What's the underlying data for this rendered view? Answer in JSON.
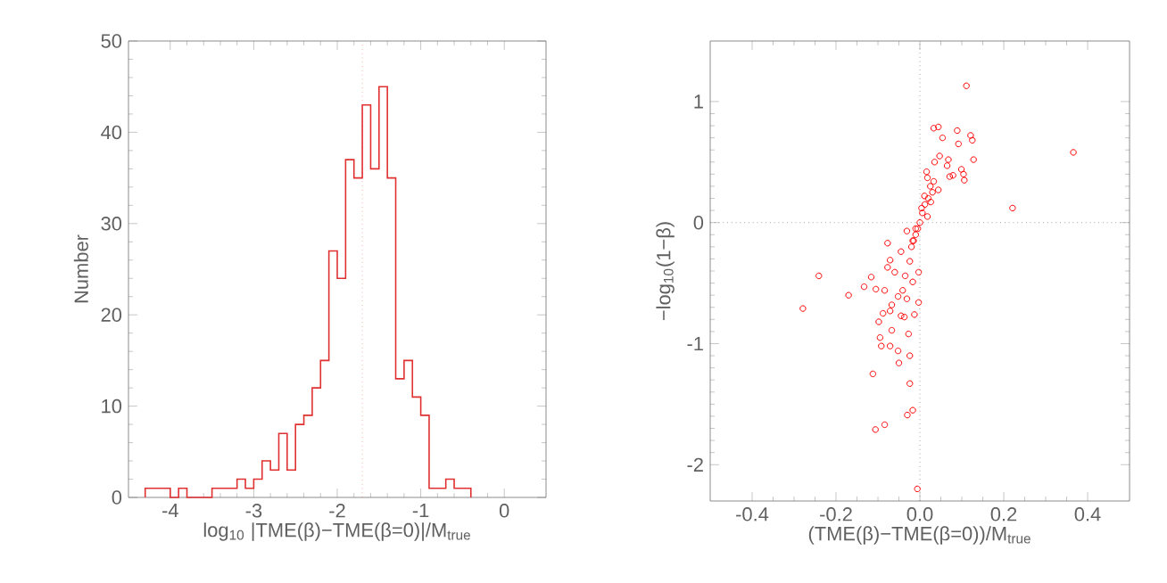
{
  "chart_data": [
    {
      "type": "histogram",
      "xlabel": "log$_{10}$ |TME(β)−TME(β=0)|/M$_{true}$",
      "ylabel": "Number",
      "color": "#e03030",
      "bins": [
        -4.3,
        -4.2,
        -4.1,
        -4.0,
        -3.9,
        -3.8,
        -3.7,
        -3.6,
        -3.5,
        -3.4,
        -3.3,
        -3.2,
        -3.1,
        -3.0,
        -2.9,
        -2.8,
        -2.7,
        -2.6,
        -2.5,
        -2.4,
        -2.3,
        -2.2,
        -2.1,
        -2.0,
        -1.9,
        -1.8,
        -1.7,
        -1.6,
        -1.5,
        -1.4,
        -1.3,
        -1.2,
        -1.1,
        -1.0,
        -0.9,
        -0.8,
        -0.7,
        -0.6,
        -0.5,
        -0.4
      ],
      "values": [
        1,
        1,
        1,
        0,
        1,
        0,
        0,
        0,
        1,
        1,
        1,
        2,
        1,
        2,
        4,
        3,
        7,
        3,
        8,
        9,
        12,
        15,
        27,
        24,
        37,
        35,
        43,
        36,
        45,
        35,
        13,
        15,
        11,
        9,
        1,
        1,
        2,
        1,
        1
      ],
      "xlim": [
        -4.5,
        0.5
      ],
      "ylim": [
        0,
        50
      ],
      "xticks": [
        -4,
        -3,
        -2,
        -1,
        0
      ],
      "yticks": [
        0,
        10,
        20,
        30,
        40,
        50
      ],
      "ref_lines": [
        {
          "axis": "x",
          "value": -1.7,
          "color": "#f08080",
          "line_style": "dotted"
        }
      ]
    },
    {
      "type": "scatter",
      "xlabel": "(TME(β)−TME(β=0))/M$_{true}$",
      "ylabel": "−log$_{10}$(1−β)",
      "color": "#ff0000",
      "marker": "circle",
      "x": [
        0.111,
        0.366,
        0.221,
        0.033,
        0.044,
        0.054,
        0.089,
        0.092,
        0.121,
        0.125,
        0.128,
        0.047,
        0.068,
        0.065,
        0.035,
        0.099,
        0.104,
        0.106,
        0.079,
        0.071,
        0.016,
        0.018,
        0.033,
        0.044,
        0.011,
        0.026,
        0.004,
        0.018,
        0.025,
        0.03,
        0.02,
        0.012,
        0.006,
        0.0,
        -0.005,
        -0.01,
        -0.015,
        -0.02,
        -0.077,
        -0.241,
        -0.279,
        -0.17,
        -0.133,
        -0.105,
        -0.116,
        -0.084,
        -0.071,
        -0.077,
        -0.06,
        -0.067,
        -0.071,
        -0.088,
        -0.098,
        -0.095,
        -0.092,
        -0.071,
        -0.052,
        -0.05,
        -0.067,
        -0.027,
        -0.024,
        -0.045,
        -0.037,
        -0.024,
        -0.112,
        -0.03,
        -0.017,
        -0.106,
        -0.084,
        -0.006,
        -0.013,
        -0.003,
        -0.003,
        -0.017,
        -0.041,
        -0.031,
        -0.052,
        -0.035,
        -0.024,
        -0.045,
        -0.017,
        -0.031,
        -0.01
      ],
      "values": [
        1.13,
        0.58,
        0.12,
        0.78,
        0.79,
        0.7,
        0.76,
        0.65,
        0.72,
        0.68,
        0.52,
        0.55,
        0.52,
        0.47,
        0.5,
        0.44,
        0.4,
        0.35,
        0.39,
        0.38,
        0.42,
        0.37,
        0.34,
        0.27,
        0.22,
        0.17,
        0.12,
        0.05,
        0.3,
        0.25,
        0.2,
        0.15,
        0.08,
        0.0,
        -0.05,
        -0.1,
        -0.15,
        -0.2,
        -0.17,
        -0.44,
        -0.71,
        -0.6,
        -0.53,
        -0.55,
        -0.45,
        -0.56,
        -0.31,
        -0.37,
        -0.41,
        -0.68,
        -0.73,
        -0.75,
        -0.82,
        -0.95,
        -1.02,
        -1.02,
        -1.06,
        -1.16,
        -0.89,
        -0.92,
        -1.1,
        -0.77,
        -0.78,
        -1.33,
        -1.25,
        -1.59,
        -1.55,
        -1.71,
        -1.67,
        -2.2,
        -0.76,
        -0.66,
        -0.41,
        -0.49,
        -0.56,
        -0.63,
        -0.61,
        -0.44,
        -0.32,
        -0.24,
        -0.15,
        -0.07,
        -0.05
      ],
      "xlim": [
        -0.5,
        0.5
      ],
      "ylim": [
        -2.3,
        1.5
      ],
      "xticks": [
        -0.4,
        -0.2,
        {
          "value": 0,
          "label": "0.0"
        },
        0.2,
        0.4
      ],
      "yticks": [
        -2,
        -1,
        0,
        1
      ],
      "ref_lines": [
        {
          "axis": "x",
          "value": 0,
          "color": "#707070",
          "line_style": "dotted"
        },
        {
          "axis": "y",
          "value": 0,
          "color": "#707070",
          "line_style": "dotted"
        }
      ]
    }
  ]
}
